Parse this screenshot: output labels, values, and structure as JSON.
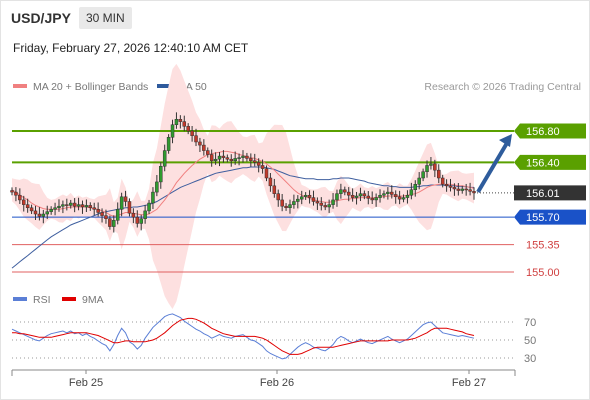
{
  "header": {
    "symbol": "USD/JPY",
    "timeframe": "30 MIN",
    "datetime": "Friday, February 27, 2026 12:40:10 AM CET",
    "copyright": "Research © 2026 Trading Central"
  },
  "legend_main": [
    {
      "label": "MA 20 + Bollinger Bands",
      "color": "#f08080"
    },
    {
      "label": "MA 50",
      "color": "#2e5a9c"
    }
  ],
  "legend_rsi": [
    {
      "label": "RSI",
      "color": "#5b7fd6"
    },
    {
      "label": "9MA",
      "color": "#e00000"
    }
  ],
  "colors": {
    "up_candle": "#2f9a2f",
    "down_candle": "#c0392b",
    "green_level": "#5aa000",
    "blue_level": "#1a52c8",
    "red_level": "#e06060",
    "band_fill": "#fde0e0",
    "ma20": "#f08080",
    "ma50": "#3f5f9f",
    "current_tag": "#333333",
    "arrow": "#2e5c9c"
  },
  "chart_data": [
    {
      "type": "candlestick",
      "ylim": [
        154.85,
        157.1
      ],
      "x_ticks": [
        "Feb 25",
        "Feb 26",
        "Feb 27"
      ],
      "levels": [
        {
          "label": "156.80",
          "value": 156.8,
          "style": "green"
        },
        {
          "label": "156.40",
          "value": 156.4,
          "style": "green"
        },
        {
          "label": "156.01",
          "value": 156.01,
          "style": "current"
        },
        {
          "label": "155.70",
          "value": 155.7,
          "style": "blue"
        },
        {
          "label": "155.35",
          "value": 155.35,
          "style": "red"
        },
        {
          "label": "155.00",
          "value": 155.0,
          "style": "red"
        }
      ],
      "close": [
        156.02,
        155.98,
        155.92,
        155.86,
        155.82,
        155.78,
        155.74,
        155.71,
        155.74,
        155.77,
        155.8,
        155.82,
        155.84,
        155.86,
        155.85,
        155.88,
        155.84,
        155.86,
        155.83,
        155.85,
        155.82,
        155.8,
        155.76,
        155.72,
        155.68,
        155.58,
        155.66,
        155.8,
        155.96,
        155.9,
        155.75,
        155.7,
        155.62,
        155.68,
        155.78,
        155.88,
        156.02,
        156.15,
        156.35,
        156.55,
        156.72,
        156.88,
        156.95,
        156.92,
        156.86,
        156.8,
        156.74,
        156.66,
        156.62,
        156.55,
        156.5,
        156.42,
        156.44,
        156.48,
        156.46,
        156.44,
        156.42,
        156.45,
        156.46,
        156.48,
        156.45,
        156.42,
        156.4,
        156.36,
        156.32,
        156.2,
        156.1,
        156.0,
        155.92,
        155.84,
        155.82,
        155.86,
        155.9,
        155.93,
        155.96,
        155.98,
        155.95,
        155.9,
        155.88,
        155.85,
        155.83,
        155.86,
        155.92,
        156.0,
        156.05,
        156.02,
        155.98,
        155.95,
        155.97,
        156.0,
        155.97,
        155.94,
        155.92,
        155.95,
        155.98,
        156.0,
        156.02,
        155.99,
        155.96,
        155.93,
        155.95,
        155.98,
        156.05,
        156.12,
        156.2,
        156.28,
        156.36,
        156.38,
        156.3,
        156.2,
        156.12,
        156.1,
        156.08,
        156.06,
        156.04,
        156.06,
        156.05,
        156.03,
        156.01
      ],
      "ma20": [
        156.05,
        156.02,
        155.98,
        155.95,
        155.92,
        155.88,
        155.85,
        155.83,
        155.81,
        155.8,
        155.8,
        155.8,
        155.8,
        155.81,
        155.82,
        155.83,
        155.83,
        155.83,
        155.83,
        155.83,
        155.82,
        155.81,
        155.8,
        155.78,
        155.76,
        155.73,
        155.71,
        155.72,
        155.74,
        155.76,
        155.76,
        155.75,
        155.74,
        155.73,
        155.73,
        155.74,
        155.77,
        155.8,
        155.86,
        155.92,
        155.99,
        156.06,
        156.14,
        156.2,
        156.26,
        156.31,
        156.36,
        156.4,
        156.44,
        156.47,
        156.5,
        156.51,
        156.52,
        156.53,
        156.54,
        156.54,
        156.53,
        156.52,
        156.5,
        156.49,
        156.47,
        156.46,
        156.45,
        156.43,
        156.41,
        156.38,
        156.34,
        156.3,
        156.25,
        156.2,
        156.15,
        156.1,
        156.05,
        156.01,
        155.98,
        155.96,
        155.94,
        155.92,
        155.91,
        155.9,
        155.89,
        155.89,
        155.9,
        155.91,
        155.92,
        155.93,
        155.93,
        155.94,
        155.94,
        155.95,
        155.95,
        155.95,
        155.95,
        155.95,
        155.96,
        155.96,
        155.97,
        155.97,
        155.97,
        155.97,
        155.97,
        155.98,
        155.99,
        156.0,
        156.02,
        156.05,
        156.08,
        156.1,
        156.11,
        156.12,
        156.12,
        156.12,
        156.12,
        156.11,
        156.1,
        156.1,
        156.09,
        156.08,
        156.07
      ],
      "ma50": [
        155.05,
        155.09,
        155.13,
        155.17,
        155.21,
        155.25,
        155.29,
        155.33,
        155.37,
        155.41,
        155.45,
        155.48,
        155.51,
        155.54,
        155.57,
        155.6,
        155.62,
        155.64,
        155.66,
        155.68,
        155.7,
        155.72,
        155.74,
        155.76,
        155.77,
        155.78,
        155.79,
        155.8,
        155.81,
        155.82,
        155.82,
        155.83,
        155.83,
        155.84,
        155.85,
        155.86,
        155.88,
        155.9,
        155.93,
        155.96,
        155.99,
        156.02,
        156.05,
        156.08,
        156.1,
        156.12,
        156.14,
        156.16,
        156.18,
        156.2,
        156.22,
        156.24,
        156.26,
        156.27,
        156.28,
        156.29,
        156.3,
        156.31,
        156.32,
        156.33,
        156.33,
        156.34,
        156.34,
        156.34,
        156.34,
        156.33,
        156.32,
        156.31,
        156.29,
        156.27,
        156.25,
        156.23,
        156.22,
        156.21,
        156.2,
        156.19,
        156.19,
        156.19,
        156.18,
        156.18,
        156.18,
        156.18,
        156.19,
        156.19,
        156.2,
        156.2,
        156.2,
        156.19,
        156.18,
        156.17,
        156.16,
        156.14,
        156.13,
        156.12,
        156.11,
        156.1,
        156.1,
        156.09,
        156.09,
        156.08,
        156.08,
        156.08,
        156.08,
        156.09,
        156.09,
        156.1,
        156.1,
        156.11,
        156.11,
        156.11,
        156.11,
        156.1,
        156.1,
        156.1,
        156.09,
        156.09,
        156.09,
        156.08,
        156.08
      ]
    },
    {
      "type": "line",
      "name": "RSI",
      "y_ticks": [
        70,
        50,
        30
      ],
      "ylim": [
        20,
        80
      ],
      "rsi": [
        62,
        60,
        58,
        56,
        54,
        52,
        50,
        49,
        52,
        55,
        57,
        58,
        59,
        60,
        58,
        60,
        57,
        58,
        55,
        57,
        54,
        52,
        49,
        46,
        44,
        38,
        45,
        55,
        63,
        58,
        48,
        45,
        40,
        44,
        52,
        58,
        64,
        68,
        72,
        76,
        78,
        79,
        77,
        75,
        71,
        68,
        65,
        62,
        60,
        57,
        55,
        52,
        54,
        56,
        54,
        53,
        52,
        54,
        55,
        56,
        53,
        50,
        49,
        46,
        43,
        38,
        35,
        33,
        31,
        29,
        30,
        34,
        38,
        42,
        45,
        47,
        45,
        42,
        41,
        39,
        38,
        41,
        45,
        51,
        54,
        52,
        49,
        47,
        49,
        51,
        49,
        47,
        46,
        48,
        50,
        52,
        54,
        51,
        49,
        47,
        49,
        51,
        55,
        59,
        63,
        67,
        69,
        70,
        66,
        62,
        58,
        57,
        56,
        55,
        54,
        55,
        54,
        53,
        52
      ],
      "ma9": [
        58,
        58,
        57,
        57,
        56,
        55,
        54,
        53,
        53,
        53,
        53,
        54,
        55,
        56,
        57,
        58,
        58,
        58,
        58,
        58,
        57,
        56,
        55,
        53,
        51,
        49,
        47,
        47,
        48,
        49,
        49,
        48,
        48,
        48,
        48,
        49,
        50,
        52,
        55,
        58,
        62,
        66,
        69,
        72,
        73,
        74,
        74,
        73,
        71,
        69,
        66,
        63,
        61,
        59,
        57,
        56,
        55,
        54,
        54,
        54,
        54,
        54,
        54,
        53,
        52,
        50,
        47,
        44,
        41,
        38,
        36,
        34,
        34,
        34,
        35,
        37,
        39,
        41,
        42,
        42,
        42,
        42,
        42,
        43,
        44,
        45,
        46,
        47,
        48,
        49,
        49,
        49,
        49,
        49,
        49,
        49,
        49,
        50,
        50,
        50,
        50,
        50,
        51,
        52,
        54,
        56,
        58,
        61,
        63,
        63,
        63,
        63,
        62,
        61,
        60,
        59,
        57,
        56,
        55
      ]
    }
  ]
}
